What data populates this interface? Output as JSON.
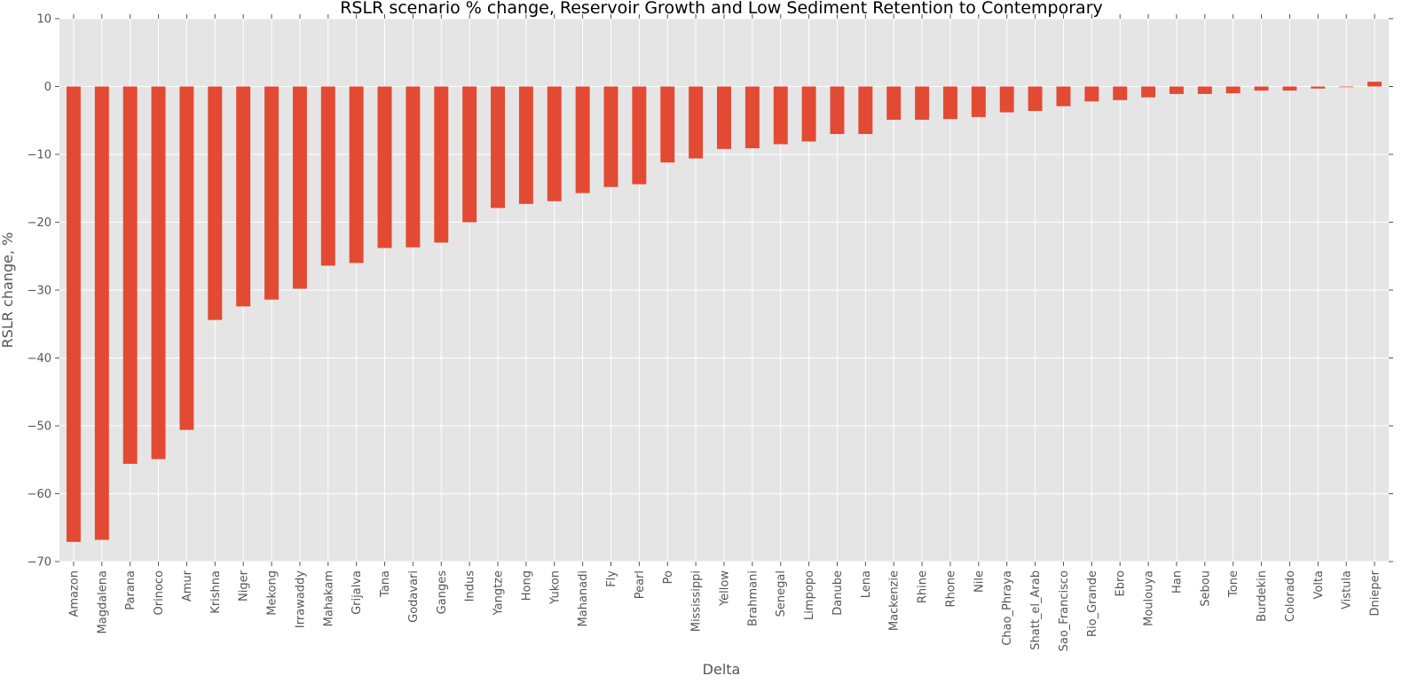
{
  "chart_data": {
    "type": "bar",
    "title": "RSLR scenario % change, Reservoir Growth and Low Sediment Retention to Contemporary",
    "xlabel": "Delta",
    "ylabel": "RSLR change, %",
    "ylim": [
      -70,
      10
    ],
    "yticks": [
      10,
      0,
      -10,
      -20,
      -30,
      -40,
      -50,
      -60,
      -70
    ],
    "ytick_labels": [
      "10",
      "0",
      "−10",
      "−20",
      "−30",
      "−40",
      "−50",
      "−60",
      "−70"
    ],
    "grid": true,
    "categories": [
      "Amazon",
      "Magdalena",
      "Parana",
      "Orinoco",
      "Amur",
      "Krishna",
      "Niger",
      "Mekong",
      "Irrawaddy",
      "Mahakam",
      "Grijalva",
      "Tana",
      "Godavari",
      "Ganges",
      "Indus",
      "Yangtze",
      "Hong",
      "Yukon",
      "Mahanadi",
      "Fly",
      "Pearl",
      "Po",
      "Mississippi",
      "Yellow",
      "Brahmani",
      "Senegal",
      "Limpopo",
      "Danube",
      "Lena",
      "Mackenzie",
      "Rhine",
      "Rhone",
      "Nile",
      "Chao_Phraya",
      "Shatt_el_Arab",
      "Sao_Francisco",
      "Rio_Grande",
      "Ebro",
      "Moulouya",
      "Han",
      "Sebou",
      "Tone",
      "Burdekin",
      "Colorado",
      "Volta",
      "Vistula",
      "Dnieper"
    ],
    "values": [
      -67.1,
      -66.8,
      -55.6,
      -54.9,
      -50.6,
      -34.4,
      -32.4,
      -31.4,
      -29.8,
      -26.4,
      -26.0,
      -23.8,
      -23.7,
      -23.0,
      -20.0,
      -17.9,
      -17.3,
      -16.9,
      -15.7,
      -14.8,
      -14.4,
      -11.2,
      -10.6,
      -9.2,
      -9.1,
      -8.5,
      -8.1,
      -7.0,
      -7.0,
      -4.9,
      -4.9,
      -4.8,
      -4.5,
      -3.8,
      -3.6,
      -2.9,
      -2.2,
      -2.0,
      -1.6,
      -1.1,
      -1.1,
      -1.0,
      -0.6,
      -0.6,
      -0.3,
      -0.1,
      0.7
    ],
    "colors": {
      "bar": "#E24A33",
      "plot_background": "#E5E5E5",
      "grid": "#FFFFFF"
    }
  }
}
